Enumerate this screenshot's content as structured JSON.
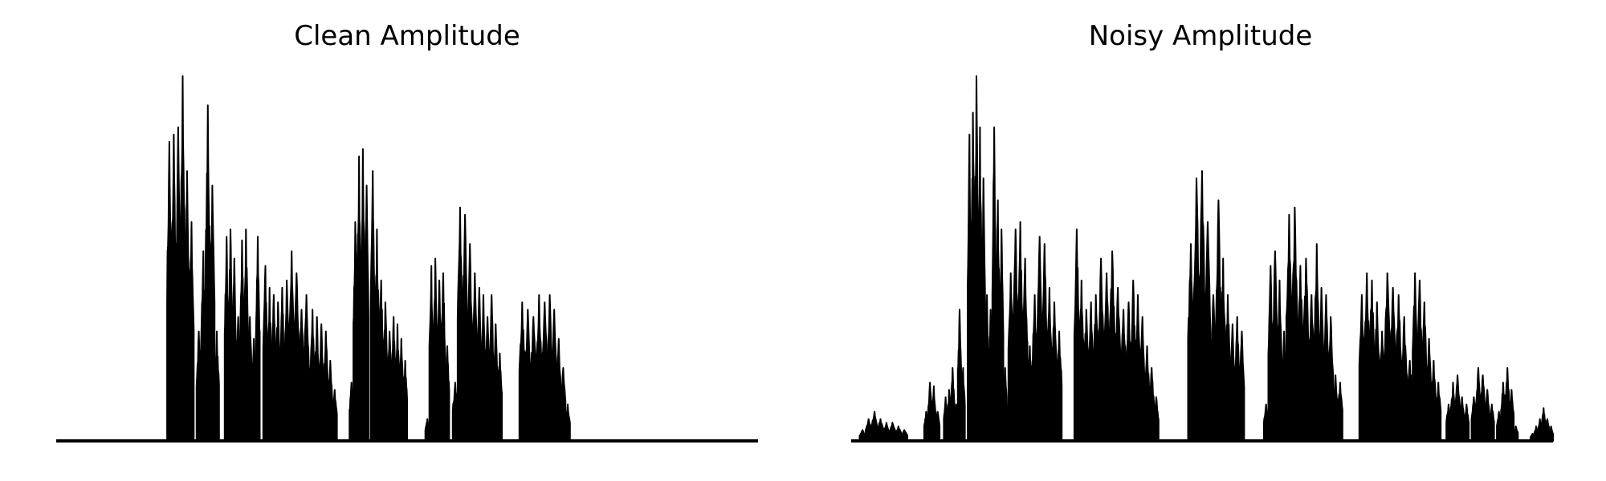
{
  "chart_data": [
    {
      "type": "area",
      "title": "Clean Amplitude",
      "xlabel": "",
      "ylabel": "",
      "axes_visible": false,
      "grid": false,
      "color": "#000000",
      "xlim": [
        0,
        1
      ],
      "ylim": [
        0,
        1
      ],
      "segments": [
        {
          "start": 0.158,
          "end": 0.196,
          "peaks": [
            0.82,
            0.84,
            0.86,
            1.0,
            0.74,
            0.6
          ]
        },
        {
          "start": 0.2,
          "end": 0.232,
          "peaks": [
            0.3,
            0.52,
            0.92,
            0.7,
            0.3
          ]
        },
        {
          "start": 0.24,
          "end": 0.262,
          "peaks": [
            0.56,
            0.58,
            0.5,
            0.34
          ]
        },
        {
          "start": 0.262,
          "end": 0.29,
          "peaks": [
            0.55,
            0.58,
            0.34,
            0.28,
            0.56
          ]
        },
        {
          "start": 0.295,
          "end": 0.325,
          "peaks": [
            0.48,
            0.42,
            0.4,
            0.38,
            0.42
          ]
        },
        {
          "start": 0.325,
          "end": 0.36,
          "peaks": [
            0.44,
            0.52,
            0.46,
            0.36,
            0.4
          ]
        },
        {
          "start": 0.362,
          "end": 0.4,
          "peaks": [
            0.36,
            0.34,
            0.32,
            0.3,
            0.22,
            0.14
          ]
        },
        {
          "start": 0.418,
          "end": 0.445,
          "peaks": [
            0.16,
            0.6,
            0.78,
            0.8,
            0.7
          ]
        },
        {
          "start": 0.448,
          "end": 0.478,
          "peaks": [
            0.74,
            0.58,
            0.44,
            0.38,
            0.3
          ]
        },
        {
          "start": 0.478,
          "end": 0.5,
          "peaks": [
            0.34,
            0.32,
            0.28,
            0.22
          ]
        },
        {
          "start": 0.526,
          "end": 0.56,
          "peaks": [
            0.06,
            0.48,
            0.5,
            0.44,
            0.46,
            0.26
          ]
        },
        {
          "start": 0.565,
          "end": 0.6,
          "peaks": [
            0.16,
            0.64,
            0.62,
            0.54,
            0.46
          ]
        },
        {
          "start": 0.6,
          "end": 0.635,
          "peaks": [
            0.42,
            0.4,
            0.34,
            0.4,
            0.32,
            0.24
          ]
        },
        {
          "start": 0.66,
          "end": 0.7,
          "peaks": [
            0.38,
            0.36,
            0.34,
            0.4,
            0.38
          ]
        },
        {
          "start": 0.7,
          "end": 0.732,
          "peaks": [
            0.4,
            0.36,
            0.28,
            0.2,
            0.1
          ]
        }
      ]
    },
    {
      "type": "area",
      "title": "Noisy Amplitude",
      "xlabel": "",
      "ylabel": "",
      "axes_visible": false,
      "grid": false,
      "color": "#000000",
      "xlim": [
        0,
        1
      ],
      "ylim": [
        0,
        1
      ],
      "segments": [
        {
          "start": 0.012,
          "end": 0.08,
          "peaks": [
            0.03,
            0.06,
            0.08,
            0.06,
            0.05,
            0.05,
            0.04,
            0.03
          ]
        },
        {
          "start": 0.104,
          "end": 0.126,
          "peaks": [
            0.08,
            0.16,
            0.15,
            0.08
          ]
        },
        {
          "start": 0.132,
          "end": 0.162,
          "peaks": [
            0.12,
            0.14,
            0.2,
            0.1,
            0.36,
            0.2
          ]
        },
        {
          "start": 0.166,
          "end": 0.196,
          "peaks": [
            0.84,
            0.9,
            1.0,
            0.86,
            0.72,
            0.4
          ]
        },
        {
          "start": 0.196,
          "end": 0.222,
          "peaks": [
            0.36,
            0.86,
            0.66,
            0.58,
            0.2
          ]
        },
        {
          "start": 0.224,
          "end": 0.258,
          "peaks": [
            0.46,
            0.58,
            0.6,
            0.5,
            0.26
          ]
        },
        {
          "start": 0.258,
          "end": 0.3,
          "peaks": [
            0.4,
            0.56,
            0.54,
            0.42,
            0.38,
            0.3
          ]
        },
        {
          "start": 0.318,
          "end": 0.352,
          "peaks": [
            0.58,
            0.44,
            0.36,
            0.38,
            0.4
          ]
        },
        {
          "start": 0.352,
          "end": 0.392,
          "peaks": [
            0.5,
            0.46,
            0.52,
            0.42,
            0.36
          ]
        },
        {
          "start": 0.392,
          "end": 0.438,
          "peaks": [
            0.38,
            0.44,
            0.4,
            0.34,
            0.26,
            0.2,
            0.12
          ]
        },
        {
          "start": 0.48,
          "end": 0.52,
          "peaks": [
            0.54,
            0.72,
            0.74,
            0.6,
            0.4
          ]
        },
        {
          "start": 0.52,
          "end": 0.56,
          "peaks": [
            0.66,
            0.5,
            0.4,
            0.32,
            0.34,
            0.3
          ]
        },
        {
          "start": 0.588,
          "end": 0.62,
          "peaks": [
            0.1,
            0.48,
            0.52,
            0.44,
            0.3
          ]
        },
        {
          "start": 0.62,
          "end": 0.66,
          "peaks": [
            0.62,
            0.64,
            0.48,
            0.5,
            0.4
          ]
        },
        {
          "start": 0.66,
          "end": 0.7,
          "peaks": [
            0.54,
            0.42,
            0.4,
            0.34,
            0.18,
            0.16
          ]
        },
        {
          "start": 0.724,
          "end": 0.76,
          "peaks": [
            0.4,
            0.46,
            0.44,
            0.38,
            0.3
          ]
        },
        {
          "start": 0.76,
          "end": 0.8,
          "peaks": [
            0.46,
            0.42,
            0.4,
            0.34,
            0.22
          ]
        },
        {
          "start": 0.8,
          "end": 0.84,
          "peaks": [
            0.46,
            0.44,
            0.38,
            0.28,
            0.22,
            0.16
          ]
        },
        {
          "start": 0.848,
          "end": 0.88,
          "peaks": [
            0.1,
            0.16,
            0.18,
            0.12,
            0.1
          ]
        },
        {
          "start": 0.884,
          "end": 0.916,
          "peaks": [
            0.12,
            0.2,
            0.18,
            0.14,
            0.1
          ]
        },
        {
          "start": 0.92,
          "end": 0.95,
          "peaks": [
            0.08,
            0.16,
            0.2,
            0.14,
            0.04
          ]
        },
        {
          "start": 0.968,
          "end": 1.0,
          "peaks": [
            0.02,
            0.04,
            0.06,
            0.09,
            0.06,
            0.04
          ]
        }
      ]
    }
  ]
}
